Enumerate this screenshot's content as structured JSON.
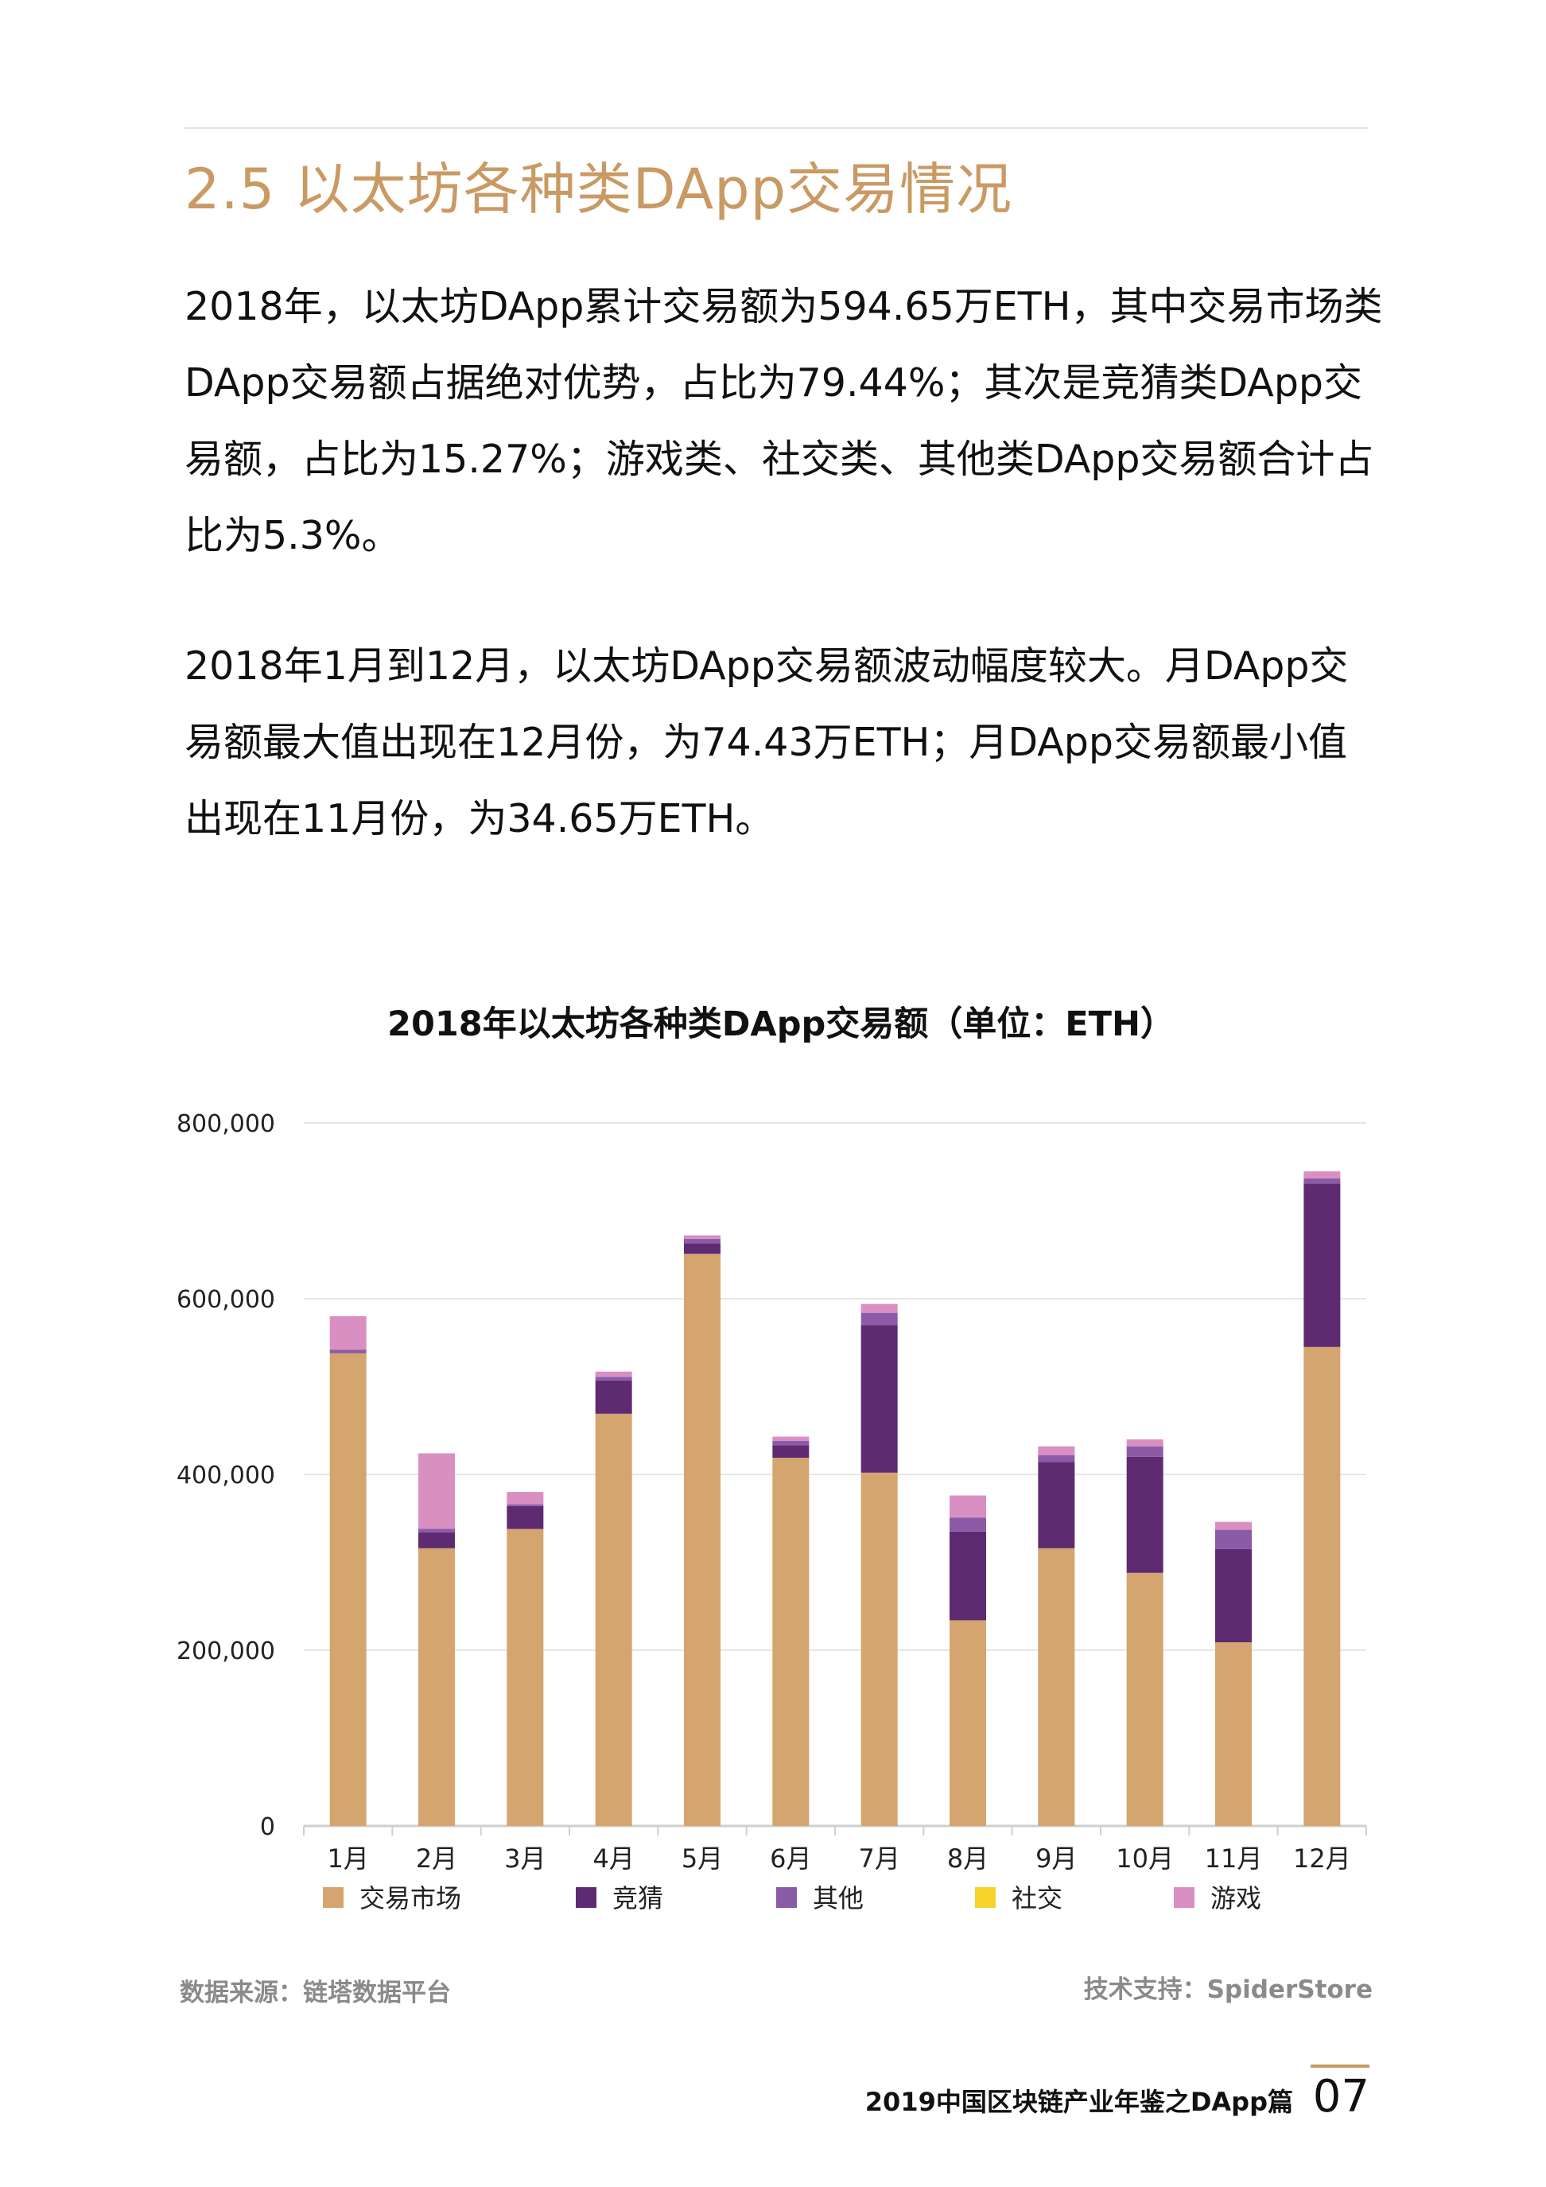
{
  "section": {
    "title": "2.5 以太坊各种类DApp交易情况"
  },
  "paragraphs": [
    "2018年，以太坊DApp累计交易额为594.65万ETH，其中交易市场类DApp交易额占据绝对优势，占比为79.44%；其次是竞猜类DApp交易额，占比为15.27%；游戏类、社交类、其他类DApp交易额合计占比为5.3%。",
    "2018年1月到12月，以太坊DApp交易额波动幅度较大。月DApp交易额最大值出现在12月份，为74.43万ETH；月DApp交易额最小值出现在11月份，为34.65万ETH。"
  ],
  "chart_data": {
    "type": "bar",
    "stacked": true,
    "title": "2018年以太坊各种类DApp交易额（单位：ETH）",
    "xlabel": "",
    "ylabel": "",
    "categories": [
      "1月",
      "2月",
      "3月",
      "4月",
      "5月",
      "6月",
      "7月",
      "8月",
      "9月",
      "10月",
      "11月",
      "12月"
    ],
    "ylim": [
      0,
      800000
    ],
    "yticks": [
      0,
      200000,
      400000,
      600000,
      800000
    ],
    "ytick_labels": [
      "0",
      "200,000",
      "400,000",
      "600,000",
      "800,000"
    ],
    "grid": true,
    "legend_position": "bottom",
    "series": [
      {
        "name": "交易市场",
        "color": "#d4a56e",
        "values": [
          538000,
          316000,
          338000,
          469000,
          651000,
          419000,
          402000,
          234000,
          316000,
          288000,
          209000,
          545000
        ]
      },
      {
        "name": "竞猜",
        "color": "#5e2b72",
        "values": [
          0,
          18000,
          26000,
          38000,
          12000,
          14000,
          168000,
          101000,
          98000,
          132000,
          106000,
          186000
        ]
      },
      {
        "name": "其他",
        "color": "#8b5ba8",
        "values": [
          4000,
          4000,
          2000,
          4000,
          5000,
          5000,
          14000,
          16000,
          8000,
          12000,
          22000,
          6000
        ]
      },
      {
        "name": "社交",
        "color": "#f5d32a",
        "values": [
          0,
          0,
          0,
          0,
          0,
          0,
          0,
          0,
          0,
          0,
          0,
          0
        ]
      },
      {
        "name": "游戏",
        "color": "#d98fc2",
        "values": [
          38000,
          86000,
          14000,
          6000,
          4000,
          5000,
          10000,
          25000,
          10000,
          8000,
          9000,
          8000
        ]
      }
    ]
  },
  "footer": {
    "source": "数据来源：链塔数据平台",
    "tech": "技术支持：SpiderStore",
    "book": "2019中国区块链产业年鉴之DApp篇",
    "page": "07"
  }
}
